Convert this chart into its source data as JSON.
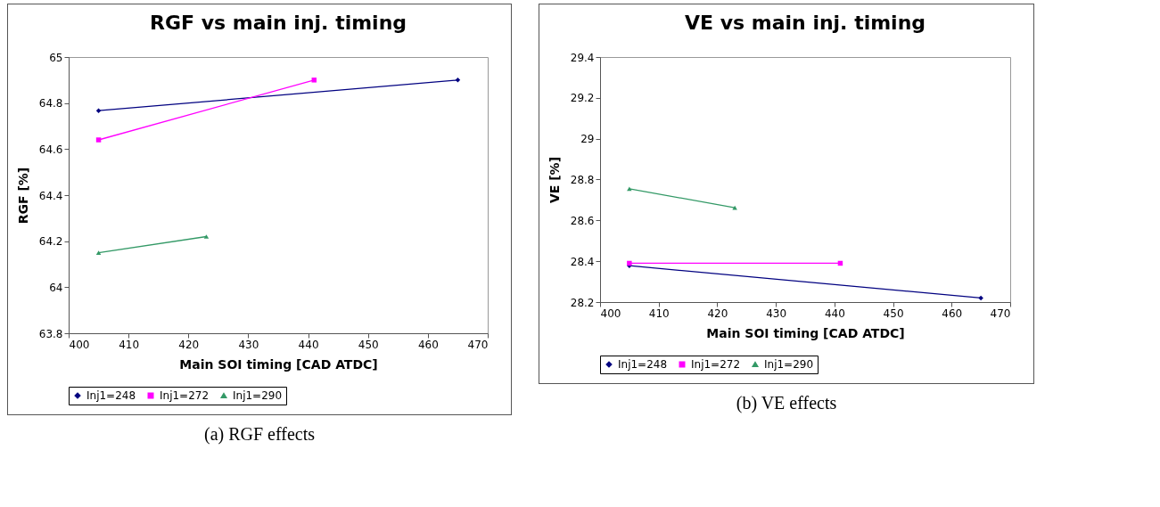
{
  "chart_data": [
    {
      "type": "line",
      "title": "RGF vs main inj. timing",
      "xlabel": "Main SOI timing [CAD ATDC]",
      "ylabel": "RGF [%]",
      "xlim": [
        400,
        470
      ],
      "xticks": [
        400,
        410,
        420,
        430,
        440,
        450,
        460,
        470
      ],
      "ylim": [
        63.8,
        65
      ],
      "yticks": [
        63.8,
        64,
        64.2,
        64.4,
        64.6,
        64.8,
        65
      ],
      "grid": false,
      "legend": "bottom",
      "annotations": [
        "(a) RGF effects"
      ],
      "series": [
        {
          "name": "Inj1=248",
          "color": "#000080",
          "marker": "diamond",
          "x": [
            405,
            465
          ],
          "values": [
            64.767,
            64.9
          ]
        },
        {
          "name": "Inj1=272",
          "color": "#ff00ff",
          "marker": "square",
          "x": [
            405,
            441
          ],
          "values": [
            64.64,
            64.9
          ]
        },
        {
          "name": "Inj1=290",
          "color": "#339966",
          "marker": "triangle",
          "x": [
            405,
            423
          ],
          "values": [
            64.15,
            64.22
          ]
        }
      ]
    },
    {
      "type": "line",
      "title": "VE vs main inj. timing",
      "xlabel": "Main SOI timing [CAD ATDC]",
      "ylabel": "VE [%]",
      "xlim": [
        400,
        470
      ],
      "xticks": [
        400,
        410,
        420,
        430,
        440,
        450,
        460,
        470
      ],
      "ylim": [
        28.2,
        29.4
      ],
      "yticks": [
        28.2,
        28.4,
        28.6,
        28.8,
        29,
        29.2,
        29.4
      ],
      "grid": false,
      "legend": "bottom",
      "annotations": [
        "(b) VE effects"
      ],
      "series": [
        {
          "name": "Inj1=248",
          "color": "#000080",
          "marker": "diamond",
          "x": [
            405,
            465
          ],
          "values": [
            28.378,
            28.22
          ]
        },
        {
          "name": "Inj1=272",
          "color": "#ff00ff",
          "marker": "square",
          "x": [
            405,
            441
          ],
          "values": [
            28.39,
            28.39
          ]
        },
        {
          "name": "Inj1=290",
          "color": "#339966",
          "marker": "triangle",
          "x": [
            405,
            423
          ],
          "values": [
            28.755,
            28.662
          ]
        }
      ]
    }
  ]
}
